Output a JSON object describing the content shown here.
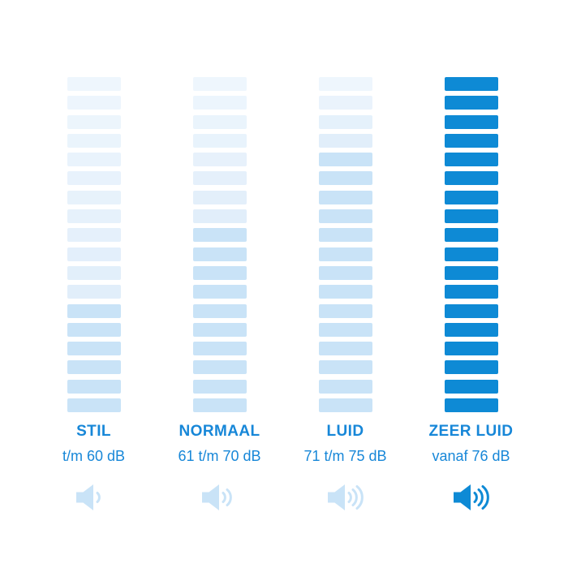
{
  "colors": {
    "background": "#ffffff",
    "accent_blue": "#0e8ad5",
    "text_blue": "#1787d8",
    "bar_pale_top": "#eef6fd",
    "bar_pale_bottom": "#e1eefa",
    "bar_filled_light": "#c9e3f7",
    "icon_light": "#c9e3f7"
  },
  "chart_data": {
    "type": "bar",
    "title": "",
    "categories": [
      "STIL",
      "NORMAAL",
      "LUID",
      "ZEER LUID"
    ],
    "category_sublabels": [
      "t/m 60 dB",
      "61 t/m 70 dB",
      "71 t/m 75 dB",
      "vanaf 76 dB"
    ],
    "series": [
      {
        "name": "segments_total",
        "values": [
          18,
          18,
          18,
          18
        ]
      },
      {
        "name": "segments_filled",
        "values": [
          6,
          10,
          14,
          18
        ]
      },
      {
        "name": "speaker_waves",
        "values": [
          1,
          2,
          3,
          3
        ]
      }
    ],
    "ylim": [
      0,
      18
    ],
    "grid": false,
    "legend_position": "none",
    "notes": "Segmented loudness meters; first three columns use light blue fill, ZEER LUID column is fully solid accent blue."
  },
  "columns": [
    {
      "id": "stil",
      "label": "STIL",
      "range": "t/m 60 dB",
      "bars_total": 18,
      "bars_filled": 6,
      "solid": false,
      "speaker_waves": 1
    },
    {
      "id": "normaal",
      "label": "NORMAAL",
      "range": "61 t/m 70 dB",
      "bars_total": 18,
      "bars_filled": 10,
      "solid": false,
      "speaker_waves": 2
    },
    {
      "id": "luid",
      "label": "LUID",
      "range": "71 t/m 75 dB",
      "bars_total": 18,
      "bars_filled": 14,
      "solid": false,
      "speaker_waves": 3
    },
    {
      "id": "zeer-luid",
      "label": "ZEER LUID",
      "range": "vanaf 76 dB",
      "bars_total": 18,
      "bars_filled": 18,
      "solid": true,
      "speaker_waves": 3
    }
  ]
}
